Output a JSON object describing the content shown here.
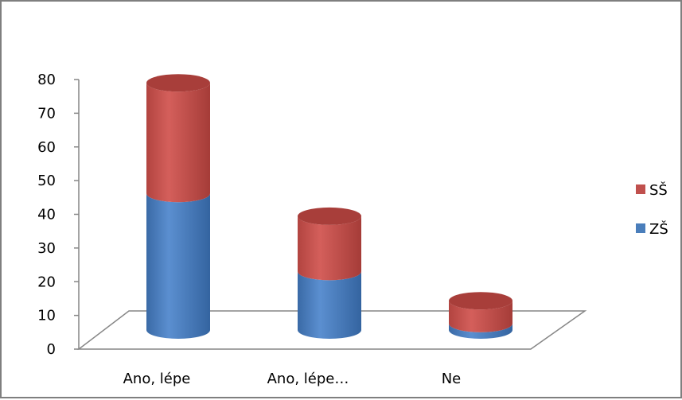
{
  "chart_data": {
    "type": "bar",
    "stacked": true,
    "style": "3d-cylinder",
    "categories": [
      "Ano, lépe",
      "Ano, lépe…",
      "Ne"
    ],
    "series": [
      {
        "name": "ZŠ",
        "values": [
          42,
          18,
          2
        ],
        "color": "#4a7ebb"
      },
      {
        "name": "SŠ",
        "values": [
          34,
          17,
          7
        ],
        "color": "#c0504d"
      }
    ],
    "ylim": [
      0,
      80
    ],
    "yticks": [
      "0",
      "10",
      "20",
      "30",
      "40",
      "50",
      "60",
      "70",
      "80"
    ],
    "legend": "right",
    "grid": false
  }
}
